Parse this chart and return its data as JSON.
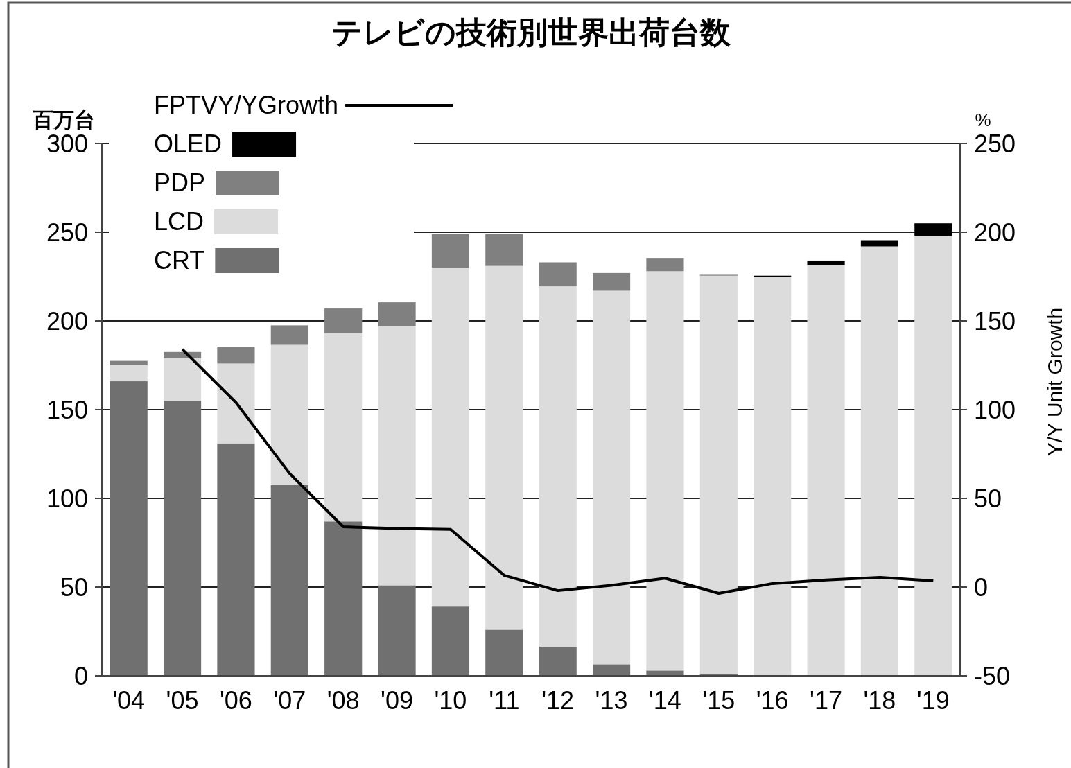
{
  "chart_data": {
    "type": "bar",
    "title": "テレビの技術別世界出荷台数",
    "ylabel": "百万台",
    "y2label": "Y/Y Unit Growth",
    "annotations": [
      "%"
    ],
    "categories": [
      "'04",
      "'05",
      "'06",
      "'07",
      "'08",
      "'09",
      "'10",
      "'11",
      "'12",
      "'13",
      "'14",
      "'15",
      "'16",
      "'17",
      "'18",
      "'19"
    ],
    "stacked": true,
    "series": [
      {
        "name": "CRT",
        "color": "#707070",
        "values": [
          166,
          155,
          131,
          107.5,
          87,
          51,
          39,
          26,
          16.5,
          6.5,
          3,
          1,
          0.3,
          0,
          0,
          0
        ]
      },
      {
        "name": "LCD",
        "color": "#dcdcdc",
        "values": [
          9,
          24,
          45,
          79,
          106,
          146,
          191,
          205,
          203,
          210.5,
          225,
          224.5,
          224.5,
          231.5,
          242,
          248
        ]
      },
      {
        "name": "PDP",
        "color": "#808080",
        "values": [
          2.5,
          3.5,
          9.5,
          11,
          14,
          13.5,
          19,
          18,
          13.5,
          10,
          7.5,
          0.5,
          0,
          0,
          0,
          0
        ]
      },
      {
        "name": "OLED",
        "color": "#000000",
        "values": [
          0,
          0,
          0,
          0,
          0,
          0,
          0,
          0,
          0,
          0,
          0,
          0,
          0.7,
          2.5,
          3.5,
          7
        ]
      },
      {
        "name": "FPTVY/YGrowth",
        "type": "line",
        "axis": "y2",
        "color": "#000000",
        "values": [
          null,
          134,
          104,
          64,
          34,
          33,
          32.5,
          6.6,
          -2,
          1,
          5,
          -3.5,
          2,
          4,
          5.5,
          3.5
        ]
      }
    ],
    "ylim": [
      0,
      300
    ],
    "yticks": [
      0,
      50,
      100,
      150,
      200,
      250,
      300
    ],
    "y2lim": [
      -50,
      250
    ],
    "y2ticks": [
      -50,
      0,
      50,
      100,
      150,
      200,
      250
    ],
    "grid": "y",
    "legend": "top left"
  }
}
